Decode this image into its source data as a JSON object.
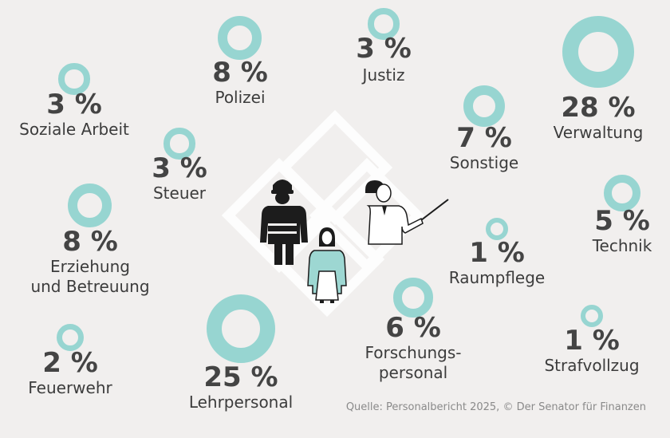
{
  "colors": {
    "background": "#f1efee",
    "ring": "#97d5d1",
    "text": "#444444",
    "figure_dark": "#1c1c1c",
    "figure_teal": "#9dd7d2",
    "diamond": "#ffffff"
  },
  "chart_data": {
    "type": "bubble",
    "unit": "%",
    "categories": [
      {
        "label": "Verwaltung",
        "value": 28
      },
      {
        "label": "Lehrpersonal",
        "value": 25
      },
      {
        "label": "Polizei",
        "value": 8
      },
      {
        "label": "Erziehung und Betreuung",
        "value": 8
      },
      {
        "label": "Sonstige",
        "value": 7
      },
      {
        "label": "Forschungspersonal",
        "value": 6
      },
      {
        "label": "Technik",
        "value": 5
      },
      {
        "label": "Justiz",
        "value": 3
      },
      {
        "label": "Soziale Arbeit",
        "value": 3
      },
      {
        "label": "Steuer",
        "value": 3
      },
      {
        "label": "Feuerwehr",
        "value": 2
      },
      {
        "label": "Raumpflege",
        "value": 1
      },
      {
        "label": "Strafvollzug",
        "value": 1
      }
    ],
    "items": [
      {
        "pct": "3 %",
        "label": [
          "Justiz"
        ],
        "value": 3
      },
      {
        "pct": "8 %",
        "label": [
          "Polizei"
        ],
        "value": 8
      },
      {
        "pct": "28 %",
        "label": [
          "Verwaltung"
        ],
        "value": 28
      },
      {
        "pct": "3 %",
        "label": [
          "Soziale Arbeit"
        ],
        "value": 3
      },
      {
        "pct": "7 %",
        "label": [
          "Sonstige"
        ],
        "value": 7
      },
      {
        "pct": "3 %",
        "label": [
          "Steuer"
        ],
        "value": 3
      },
      {
        "pct": "5 %",
        "label": [
          "Technik"
        ],
        "value": 5
      },
      {
        "pct": "8 %",
        "label": [
          "Erziehung",
          "und Betreuung"
        ],
        "value": 8
      },
      {
        "pct": "1 %",
        "label": [
          "Raumpflege"
        ],
        "value": 1
      },
      {
        "pct": "6 %",
        "label": [
          "Forschungs-",
          "personal"
        ],
        "value": 6
      },
      {
        "pct": "25 %",
        "label": [
          "Lehrpersonal"
        ],
        "value": 25
      },
      {
        "pct": "2 %",
        "label": [
          "Feuerwehr"
        ],
        "value": 2
      },
      {
        "pct": "1 %",
        "label": [
          "Strafvollzug"
        ],
        "value": 1
      }
    ]
  },
  "source": "Quelle: Personalbericht 2025, © Der Senator für Finanzen"
}
